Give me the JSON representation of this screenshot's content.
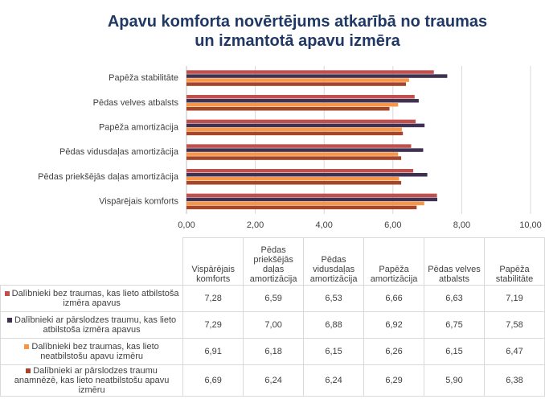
{
  "chart_data": {
    "type": "bar",
    "orientation": "horizontal",
    "title": "Apavu komforta novērtējums atkarībā no traumas un izmantotā apavu izmēra",
    "categories": [
      "Vispārējais komforts",
      "Pēdas priekšējās daļas amortizācija",
      "Pēdas vidusdaļas amortizācija",
      "Papēža amortizācija",
      "Pēdas velves atbalsts",
      "Papēža stabilitāte"
    ],
    "series": [
      {
        "name": "Dalībnieki bez traumas, kas lieto atbilstoša izmēra apavus",
        "color": "#c0504d",
        "values": [
          7.28,
          6.59,
          6.53,
          6.66,
          6.63,
          7.19
        ],
        "value_labels": [
          "7,28",
          "6,59",
          "6,53",
          "6,66",
          "6,63",
          "7,19"
        ]
      },
      {
        "name": "Dalībnieki ar pārslodzes traumu, kas lieto atbilstoša izmēra apavus",
        "color": "#3f3151",
        "values": [
          7.29,
          7.0,
          6.88,
          6.92,
          6.75,
          7.58
        ],
        "value_labels": [
          "7,29",
          "7,00",
          "6,88",
          "6,92",
          "6,75",
          "7,58"
        ]
      },
      {
        "name": "Dalībnieki bez traumas, kas lieto neatbilstošu apavu izmēru",
        "color": "#f79646",
        "values": [
          6.91,
          6.18,
          6.15,
          6.26,
          6.15,
          6.47
        ],
        "value_labels": [
          "6,91",
          "6,18",
          "6,15",
          "6,26",
          "6,15",
          "6,47"
        ]
      },
      {
        "name": "Dalībnieki ar pārslodzes traumu anamnēzē, kas lieto neatbilstošu apavu izmēru",
        "color": "#a5452a",
        "values": [
          6.69,
          6.24,
          6.24,
          6.29,
          5.9,
          6.38
        ],
        "value_labels": [
          "6,69",
          "6,24",
          "6,24",
          "6,29",
          "5,90",
          "6,38"
        ]
      }
    ],
    "xlim": [
      0,
      10
    ],
    "xticks": [
      {
        "value": 0,
        "label": "0,00"
      },
      {
        "value": 2,
        "label": "2,00"
      },
      {
        "value": 4,
        "label": "4,00"
      },
      {
        "value": 6,
        "label": "6,00"
      },
      {
        "value": 8,
        "label": "8,00"
      },
      {
        "value": 10,
        "label": "10,00"
      }
    ],
    "grid": true
  }
}
